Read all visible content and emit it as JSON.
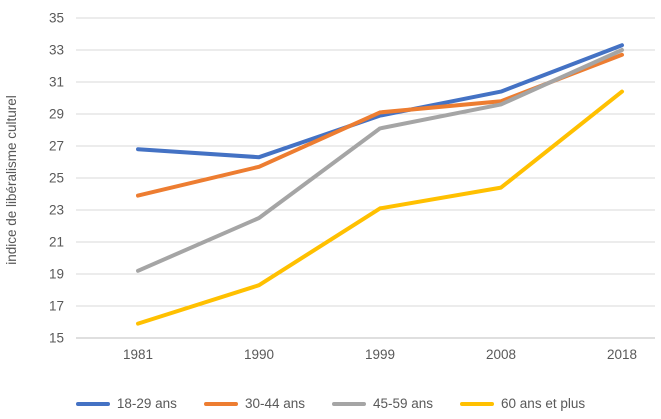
{
  "chart_data": {
    "type": "line",
    "title": "",
    "xlabel": "",
    "ylabel": "indice de libéralisme culturel",
    "categories": [
      "1981",
      "1990",
      "1999",
      "2008",
      "2018"
    ],
    "series": [
      {
        "name": "18-29 ans",
        "color": "#4472C4",
        "values": [
          26.8,
          26.3,
          28.9,
          30.4,
          33.3
        ]
      },
      {
        "name": "30-44 ans",
        "color": "#ED7D31",
        "values": [
          23.9,
          25.7,
          29.1,
          29.8,
          32.7
        ]
      },
      {
        "name": "45-59 ans",
        "color": "#A5A5A5",
        "values": [
          19.2,
          22.5,
          28.1,
          29.6,
          33.0
        ]
      },
      {
        "name": "60 ans et plus",
        "color": "#FFC000",
        "values": [
          15.9,
          18.3,
          23.1,
          24.4,
          30.4
        ]
      }
    ],
    "ylim": [
      15,
      35
    ],
    "ytick_step": 2,
    "yticks": [
      15,
      17,
      19,
      21,
      23,
      25,
      27,
      29,
      31,
      33,
      35
    ],
    "grid": "horizontal",
    "legend_position": "bottom",
    "colors": {
      "grid": "#D9D9D9",
      "axis": "#BFBFBF",
      "text": "#595959"
    }
  }
}
